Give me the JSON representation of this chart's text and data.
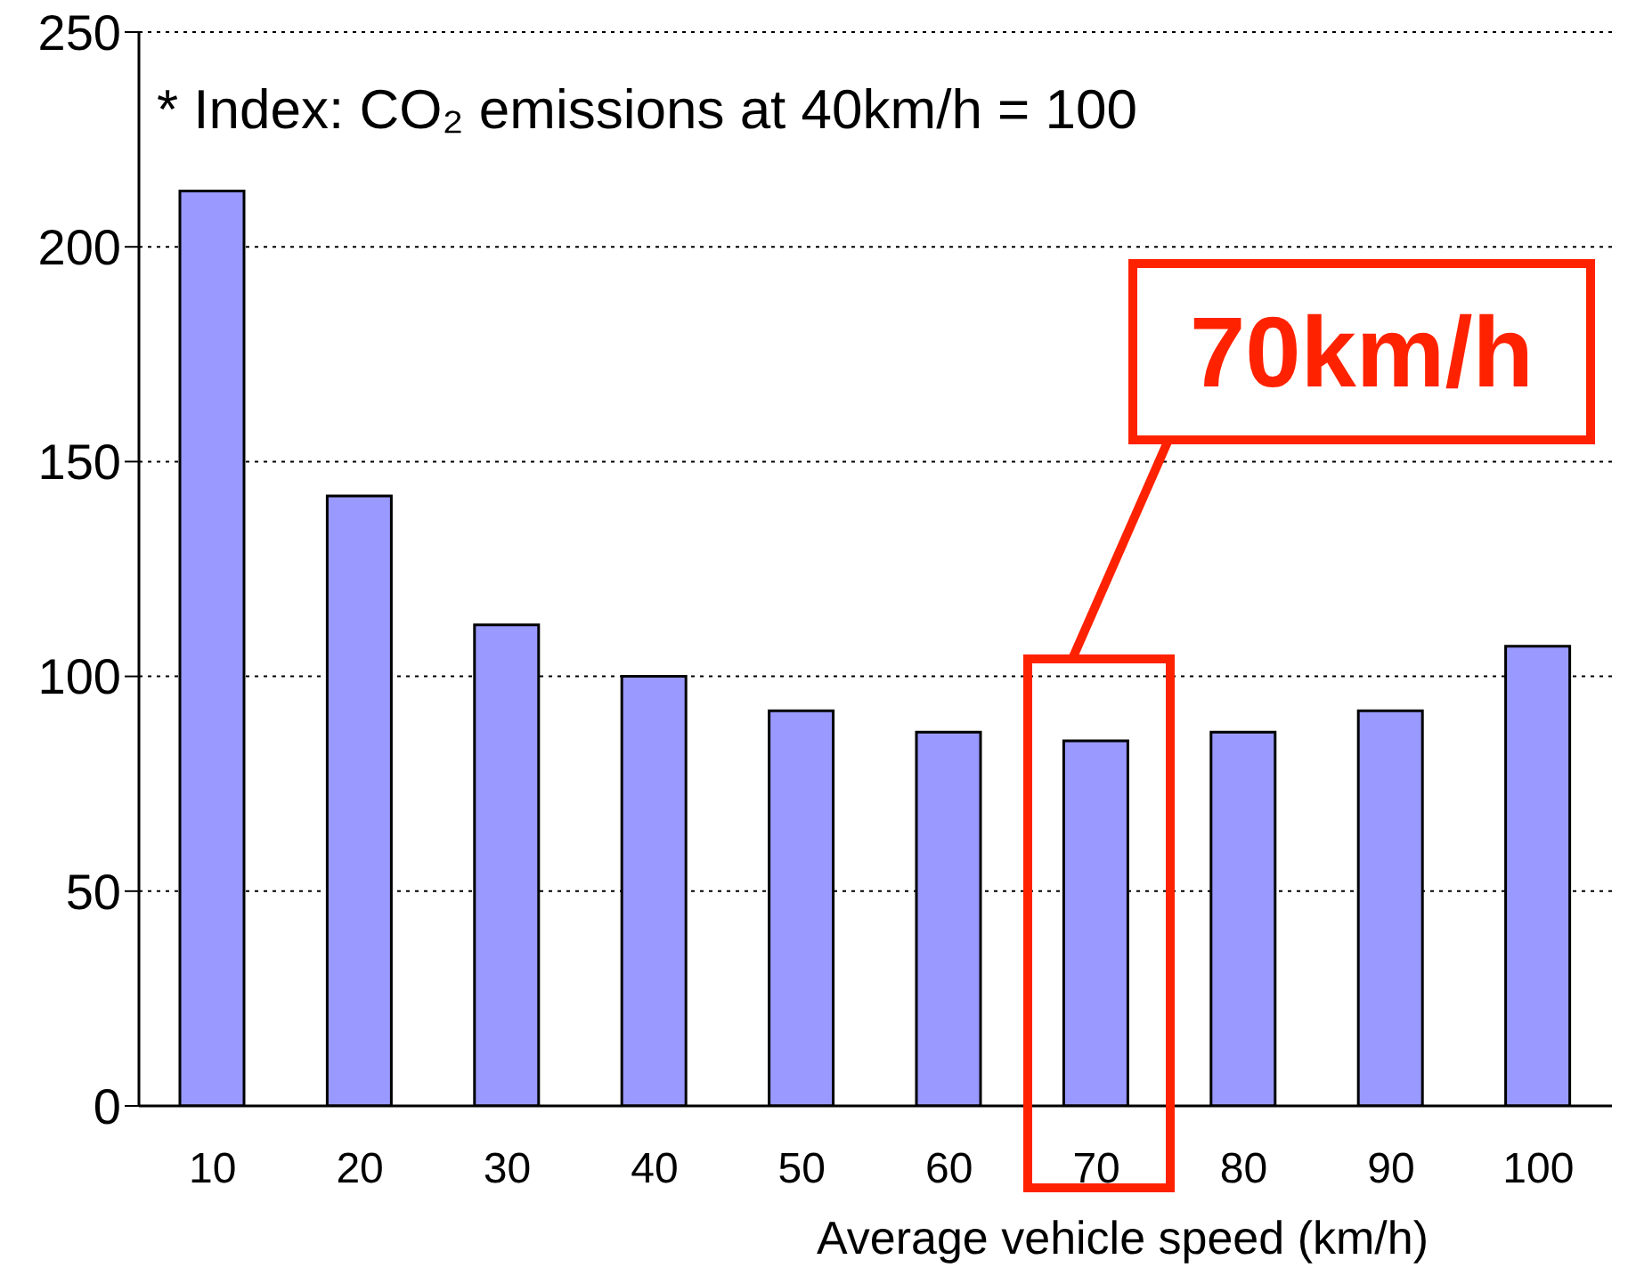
{
  "chart_data": {
    "type": "bar",
    "xlabel": "Average vehicle speed (km/h)",
    "categories": [
      "10",
      "20",
      "30",
      "40",
      "50",
      "60",
      "70",
      "80",
      "90",
      "100"
    ],
    "values": [
      213,
      142,
      112,
      100,
      92,
      87,
      85,
      87,
      92,
      107
    ],
    "color": "#9999ff",
    "ylim": [
      0,
      250
    ],
    "yticks": [
      0,
      50,
      100,
      150,
      200,
      250
    ],
    "grid": "y",
    "annotations": [
      "* Index: CO₂ emissions at 40km/h = 100",
      "70km/h"
    ]
  }
}
